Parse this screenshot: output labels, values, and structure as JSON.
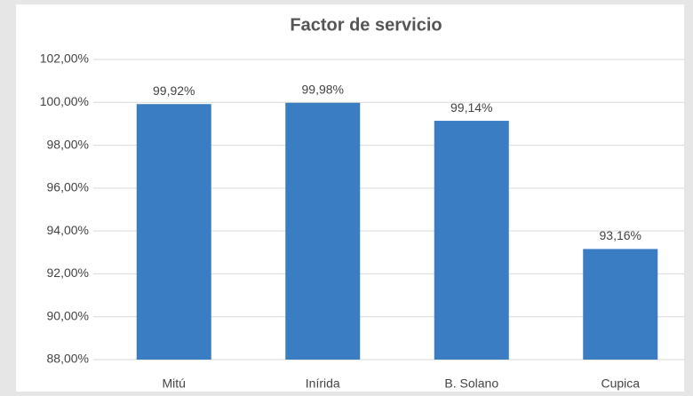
{
  "chart_data": {
    "type": "bar",
    "title": "Factor de servicio",
    "categories": [
      "Mitú",
      "Inírida",
      "B. Solano",
      "Cupica"
    ],
    "values": [
      99.92,
      99.98,
      99.14,
      93.16
    ],
    "value_labels": [
      "99,92%",
      "99,98%",
      "99,14%",
      "93,16%"
    ],
    "color": "#3b7dc3",
    "ylim": [
      88,
      102
    ],
    "yticks": [
      {
        "value": 88,
        "label": "88,00%"
      },
      {
        "value": 90,
        "label": "90,00%"
      },
      {
        "value": 92,
        "label": "92,00%"
      },
      {
        "value": 94,
        "label": "94,00%"
      },
      {
        "value": 96,
        "label": "96,00%"
      },
      {
        "value": 98,
        "label": "98,00%"
      },
      {
        "value": 100,
        "label": "100,00%"
      },
      {
        "value": 102,
        "label": "102,00%"
      }
    ],
    "grid": true
  }
}
